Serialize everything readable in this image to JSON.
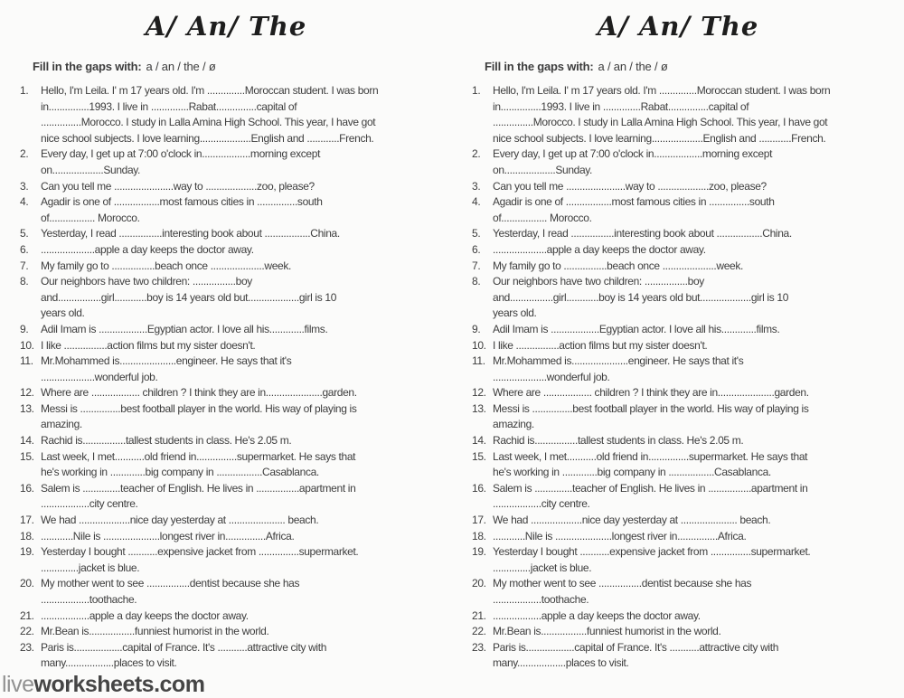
{
  "page": {
    "title": "A/ An/ The",
    "instructions_label": "Fill in the gaps with:",
    "instructions_options": "a / an / the / ø"
  },
  "items": [
    {
      "num": "1.",
      "lines": [
        "Hello, I'm Leila. I' m 17 years old. I'm ..............Moroccan student. I was born",
        "in...............1993. I live in ..............Rabat...............capital of",
        "...............Morocco. I study in Lalla Amina High School. This year, I have got",
        "nice school subjects. I love learning...................English and ............French."
      ]
    },
    {
      "num": "2.",
      "lines": [
        "Every day, I get up at 7:00 o'clock in..................morning except",
        "on...................Sunday."
      ]
    },
    {
      "num": "3.",
      "lines": [
        "Can you tell me ......................way to ...................zoo, please?"
      ]
    },
    {
      "num": "4.",
      "lines": [
        "Agadir is one of .................most famous cities in ...............south",
        "of................. Morocco."
      ]
    },
    {
      "num": "5.",
      "lines": [
        "Yesterday, I read ................interesting book about .................China."
      ]
    },
    {
      "num": "6.",
      "lines": [
        "....................apple a day keeps the doctor away."
      ]
    },
    {
      "num": "7.",
      "lines": [
        "My family go to ................beach once ....................week."
      ]
    },
    {
      "num": "8.",
      "lines": [
        "Our neighbors have two children: ................boy",
        "and................girl............boy is 14 years old but...................girl is 10",
        "years old."
      ]
    },
    {
      "num": "9.",
      "lines": [
        "Adil Imam is ..................Egyptian actor. I love all his.............films."
      ]
    },
    {
      "num": "10.",
      "lines": [
        "I like ................action films but my sister doesn't."
      ]
    },
    {
      "num": "11.",
      "lines": [
        "Mr.Mohammed is.....................engineer. He says that it's",
        "....................wonderful job."
      ]
    },
    {
      "num": "12.",
      "lines": [
        "Where are .................. children ? I think they are in.....................garden."
      ]
    },
    {
      "num": "13.",
      "lines": [
        "Messi is ...............best football player in the world. His way of playing is",
        "amazing."
      ]
    },
    {
      "num": "14.",
      "lines": [
        "Rachid is................tallest students in class. He's 2.05 m."
      ]
    },
    {
      "num": "15.",
      "lines": [
        "Last week, I met...........old friend in...............supermarket. He says that",
        "he's working in .............big company in .................Casablanca."
      ]
    },
    {
      "num": "16.",
      "lines": [
        "Salem is ..............teacher of English. He lives in ................apartment in",
        "..................city centre."
      ]
    },
    {
      "num": "17.",
      "lines": [
        "We had ...................nice day yesterday at ..................... beach."
      ]
    },
    {
      "num": "18.",
      "lines": [
        "............Nile is .....................longest river in...............Africa."
      ]
    },
    {
      "num": "19.",
      "lines": [
        "Yesterday I bought ...........expensive jacket from ...............supermarket.",
        "..............jacket is blue."
      ]
    },
    {
      "num": "20.",
      "lines": [
        "My mother went to see ................dentist because she has",
        "..................toothache."
      ]
    },
    {
      "num": "21.",
      "lines": [
        "..................apple a day keeps the doctor away."
      ]
    },
    {
      "num": "22.",
      "lines": [
        "Mr.Bean is.................funniest humorist in the world."
      ]
    },
    {
      "num": "23.",
      "lines": [
        "Paris is..................capital of France. It's ...........attractive city with",
        "many..................places to visit."
      ]
    }
  ],
  "footer": {
    "brand_light": "live",
    "brand_bold": "worksheets.com"
  },
  "colors": {
    "text": "#3d3d3d",
    "title": "#1d1d1d",
    "footer_light": "#929292",
    "footer_dark": "#454545",
    "background": "#fbfbfa"
  }
}
